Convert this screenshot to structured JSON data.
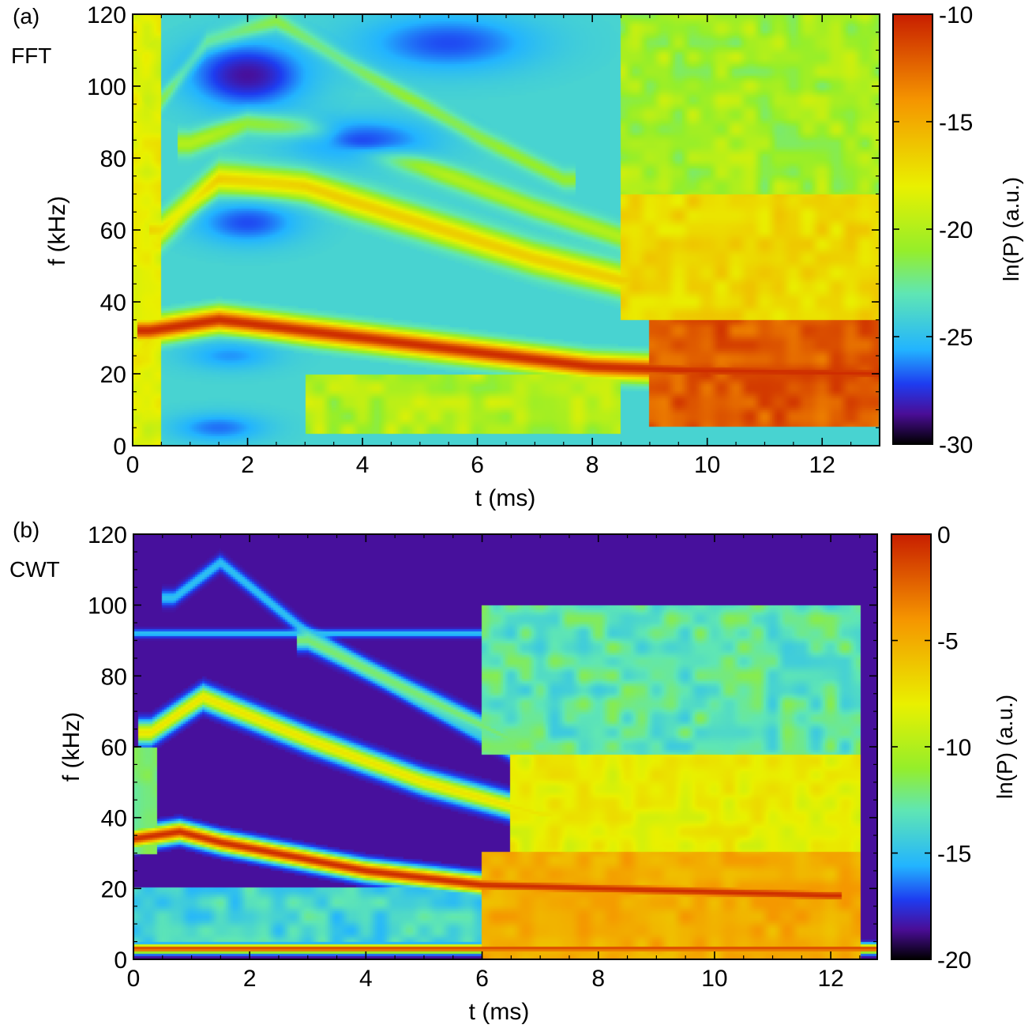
{
  "panels": [
    {
      "panel_label": "(a)",
      "method_label": "FFT",
      "colorbar_title": "ln(P)  (a.u.)"
    },
    {
      "panel_label": "(b)",
      "method_label": "CWT",
      "colorbar_title": "ln(P)  (a.u.)"
    }
  ],
  "chart_data": [
    {
      "type": "heatmap",
      "title": "",
      "xlabel": "t (ms)",
      "ylabel": "f (kHz)",
      "xlim": [
        0,
        13
      ],
      "ylim": [
        0,
        120
      ],
      "xticks": [
        0,
        2,
        4,
        6,
        8,
        10,
        12
      ],
      "yticks": [
        0,
        20,
        40,
        60,
        80,
        100,
        120
      ],
      "colorbar": {
        "label": "ln(P)  (a.u.)",
        "range": [
          -30,
          -10
        ],
        "ticks": [
          -10,
          -15,
          -20,
          -25,
          -30
        ]
      },
      "background_level": -24,
      "features": [
        {
          "kind": "ridge",
          "t": [
            0.3,
            1.5,
            4,
            6,
            8,
            9.5,
            13
          ],
          "f": [
            32,
            35,
            30,
            26,
            22,
            21,
            20
          ],
          "value": -10.5,
          "width_khz": 3.2
        },
        {
          "kind": "ridge",
          "t": [
            0.5,
            1.5,
            3,
            5,
            7,
            8.5
          ],
          "f": [
            60,
            74,
            72,
            62,
            52,
            46
          ],
          "value": -16.5,
          "width_khz": 4
        },
        {
          "kind": "ridge",
          "t": [
            1,
            2,
            3,
            5,
            7,
            8.5
          ],
          "f": [
            84,
            90,
            88,
            78,
            66,
            58
          ],
          "value": -20,
          "width_khz": 3
        },
        {
          "kind": "ridge",
          "t": [
            0.3,
            1.3,
            2.5,
            4,
            6,
            7.5
          ],
          "f": [
            92,
            112,
            118,
            104,
            86,
            74
          ],
          "value": -21,
          "width_khz": 2.5
        },
        {
          "kind": "region",
          "t": [
            9,
            13
          ],
          "f": [
            5,
            35
          ],
          "value": -12,
          "noise": 1.2
        },
        {
          "kind": "region",
          "t": [
            8.5,
            13
          ],
          "f": [
            35,
            70
          ],
          "value": -17,
          "noise": 1.0
        },
        {
          "kind": "region",
          "t": [
            8.5,
            13
          ],
          "f": [
            70,
            120
          ],
          "value": -20.5,
          "noise": 1.5
        },
        {
          "kind": "region",
          "t": [
            3,
            8.5
          ],
          "f": [
            3,
            20
          ],
          "value": -20,
          "noise": 1.5
        },
        {
          "kind": "region",
          "t": [
            0,
            0.5
          ],
          "f": [
            0,
            120
          ],
          "value": -18,
          "noise": 1.0
        },
        {
          "kind": "blob",
          "t": 2,
          "f": 103,
          "value": -28.5,
          "rt": 1.0,
          "rf": 9
        },
        {
          "kind": "blob",
          "t": 5.5,
          "f": 112,
          "value": -27,
          "rt": 1.5,
          "rf": 8
        },
        {
          "kind": "blob",
          "t": 2,
          "f": 62,
          "value": -27,
          "rt": 0.9,
          "rf": 6
        },
        {
          "kind": "blob",
          "t": 4,
          "f": 85,
          "value": -27,
          "rt": 1.2,
          "rf": 6
        },
        {
          "kind": "blob",
          "t": 1.5,
          "f": 5,
          "value": -26.5,
          "rt": 0.8,
          "rf": 4
        },
        {
          "kind": "blob",
          "t": 1.7,
          "f": 25,
          "value": -26,
          "rt": 0.8,
          "rf": 4
        }
      ]
    },
    {
      "type": "heatmap",
      "title": "",
      "xlabel": "t (ms)",
      "ylabel": "f (kHz)",
      "xlim": [
        0,
        12.8
      ],
      "ylim": [
        0,
        120
      ],
      "xticks": [
        0,
        2,
        4,
        6,
        8,
        10,
        12
      ],
      "yticks": [
        0,
        20,
        40,
        60,
        80,
        100,
        120
      ],
      "colorbar": {
        "label": "ln(P)  (a.u.)",
        "range": [
          -20,
          0
        ],
        "ticks": [
          0,
          -5,
          -10,
          -15,
          -20
        ]
      },
      "background_level": -18.5,
      "features": [
        {
          "kind": "ridge",
          "t": [
            0,
            0.8,
            1.5,
            4,
            6,
            8,
            10,
            12
          ],
          "f": [
            34,
            36,
            33,
            25,
            21,
            20,
            19,
            18
          ],
          "value": -0.5,
          "width_khz": 2.5
        },
        {
          "kind": "ridge",
          "t": [
            0.3,
            1.2,
            3,
            5,
            7
          ],
          "f": [
            64,
            74,
            62,
            50,
            41
          ],
          "value": -7.5,
          "width_khz": 3
        },
        {
          "kind": "ridge",
          "t": [
            0.7,
            1.5,
            3,
            5,
            6.5
          ],
          "f": [
            102,
            112,
            92,
            72,
            58
          ],
          "value": -15,
          "width_khz": 2
        },
        {
          "kind": "ridge",
          "t": [
            3,
            5,
            7
          ],
          "f": [
            90,
            74,
            58
          ],
          "value": -12,
          "width_khz": 2.5
        },
        {
          "kind": "ridge",
          "t": [
            0,
            5,
            7
          ],
          "f": [
            92,
            92,
            92
          ],
          "value": -15,
          "width_khz": 1
        },
        {
          "kind": "ridge",
          "t": [
            0,
            12.8
          ],
          "f": [
            3,
            3
          ],
          "value": -1,
          "width_khz": 1.2
        },
        {
          "kind": "region",
          "t": [
            6,
            12.5
          ],
          "f": [
            0,
            30
          ],
          "value": -5,
          "noise": 1.0
        },
        {
          "kind": "region",
          "t": [
            6.5,
            12.5
          ],
          "f": [
            30,
            58
          ],
          "value": -8,
          "noise": 1.0
        },
        {
          "kind": "region",
          "t": [
            6,
            12.5
          ],
          "f": [
            58,
            100
          ],
          "value": -13,
          "noise": 1.5
        },
        {
          "kind": "region",
          "t": [
            0,
            6
          ],
          "f": [
            5,
            20
          ],
          "value": -14,
          "noise": 1.5
        },
        {
          "kind": "region",
          "t": [
            0,
            0.4
          ],
          "f": [
            30,
            60
          ],
          "value": -12,
          "noise": 1.0
        }
      ]
    }
  ]
}
